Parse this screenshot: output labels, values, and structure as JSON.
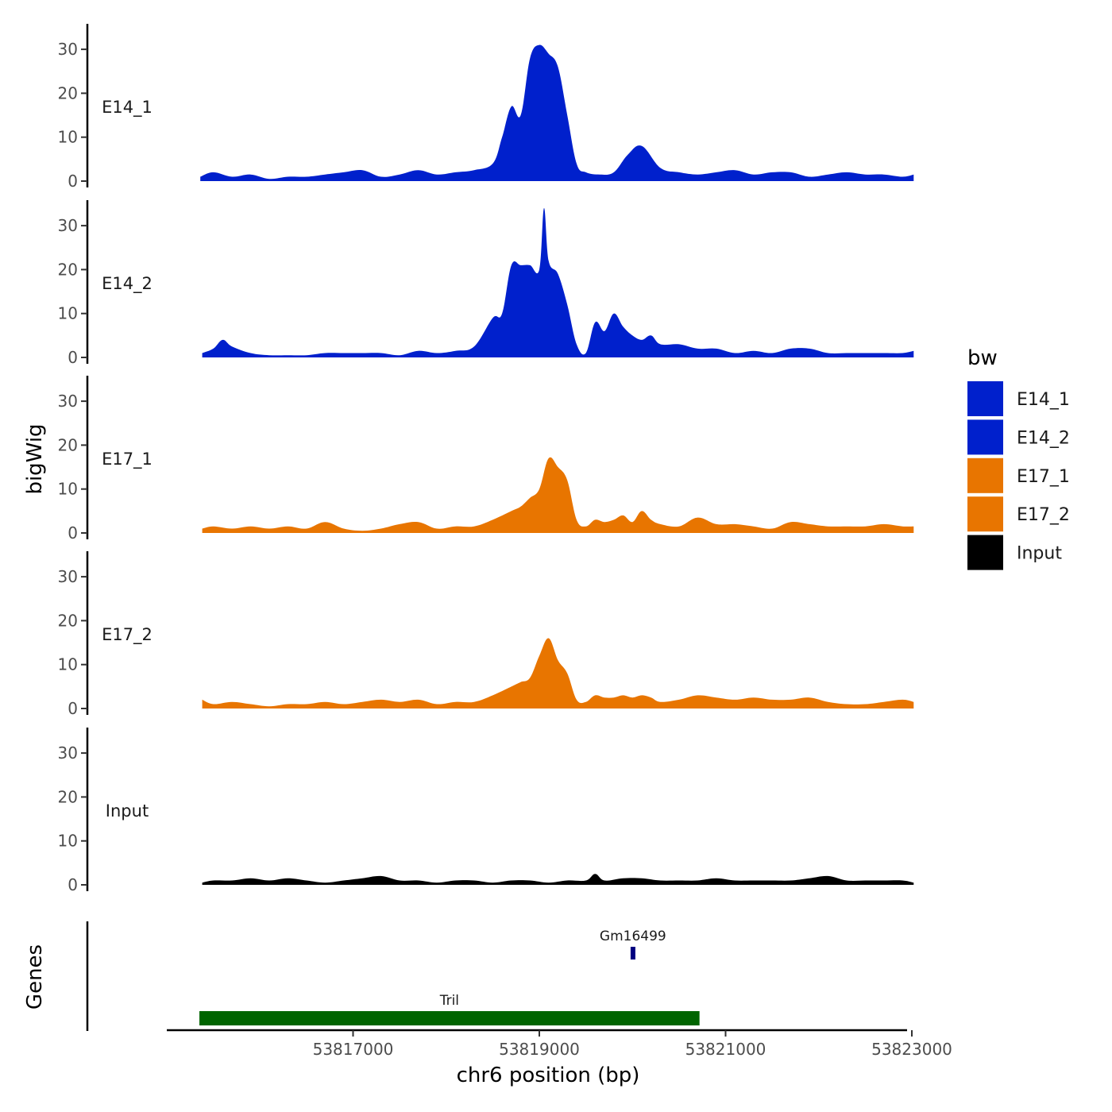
{
  "chart_data": {
    "type": "area",
    "title": "",
    "xlabel": "chr6 position (bp)",
    "ylabel": "bigWig",
    "genes_label": "Genes",
    "xlim": [
      53815000,
      53823000
    ],
    "x_ticks": [
      53817000,
      53819000,
      53821000,
      53823000
    ],
    "x_tick_labels": [
      "53817000",
      "53819000",
      "53821000",
      "53823000"
    ],
    "ylim": [
      0,
      35
    ],
    "y_ticks": [
      0,
      10,
      20,
      30
    ],
    "y_tick_labels": [
      "0",
      "10",
      "20",
      "30"
    ],
    "legend_title": "bw",
    "legend": [
      {
        "label": "E14_1",
        "color": "#0020CC"
      },
      {
        "label": "E14_2",
        "color": "#0020CC"
      },
      {
        "label": "E17_1",
        "color": "#E87500"
      },
      {
        "label": "E17_2",
        "color": "#E87500"
      },
      {
        "label": "Input",
        "color": "#000000"
      }
    ],
    "series": [
      {
        "name": "E14_1",
        "color": "#0020CC",
        "x": [
          53815360,
          53815500,
          53815700,
          53815900,
          53816100,
          53816300,
          53816500,
          53816700,
          53816900,
          53817100,
          53817300,
          53817500,
          53817700,
          53817900,
          53818100,
          53818300,
          53818500,
          53818600,
          53818700,
          53818800,
          53818900,
          53819000,
          53819100,
          53819200,
          53819300,
          53819400,
          53819500,
          53819650,
          53819800,
          53819950,
          53820100,
          53820300,
          53820500,
          53820700,
          53820900,
          53821100,
          53821300,
          53821500,
          53821700,
          53821900,
          53822100,
          53822300,
          53822500,
          53822700,
          53822900,
          53823020
        ],
        "values": [
          1,
          2,
          1,
          1.5,
          0.5,
          1,
          1,
          1.5,
          2,
          2.5,
          1,
          1.5,
          2.5,
          1.5,
          2,
          2.5,
          4,
          10,
          17,
          15,
          28,
          31,
          29,
          26,
          15,
          4,
          2,
          1.5,
          2,
          6,
          8,
          3,
          2,
          1.5,
          2,
          2.5,
          1.5,
          2,
          2,
          1,
          1.5,
          2,
          1.5,
          1.5,
          1,
          1.5
        ]
      },
      {
        "name": "E14_2",
        "color": "#0020CC",
        "x": [
          53815380,
          53815500,
          53815600,
          53815700,
          53815900,
          53816100,
          53816300,
          53816500,
          53816700,
          53816900,
          53817100,
          53817300,
          53817500,
          53817700,
          53817900,
          53818100,
          53818300,
          53818500,
          53818600,
          53818700,
          53818800,
          53818900,
          53819000,
          53819050,
          53819100,
          53819200,
          53819300,
          53819400,
          53819500,
          53819600,
          53819700,
          53819800,
          53819900,
          53820000,
          53820100,
          53820200,
          53820300,
          53820500,
          53820700,
          53820900,
          53821100,
          53821300,
          53821500,
          53821700,
          53821900,
          53822100,
          53822300,
          53822500,
          53822700,
          53822900,
          53823020
        ],
        "values": [
          1,
          2,
          4,
          2.5,
          1,
          0.5,
          0.5,
          0.5,
          1,
          1,
          1,
          1,
          0.5,
          1.5,
          1,
          1.5,
          2.5,
          9,
          10,
          21,
          21,
          21,
          20,
          34,
          22,
          19,
          12,
          3,
          1,
          8,
          6,
          10,
          7,
          5,
          4,
          5,
          3,
          3,
          2,
          2,
          1,
          1.5,
          1,
          2,
          2,
          1,
          1,
          1,
          1,
          1,
          1.5
        ]
      },
      {
        "name": "E17_1",
        "color": "#E87500",
        "x": [
          53815380,
          53815500,
          53815700,
          53815900,
          53816100,
          53816300,
          53816500,
          53816700,
          53816900,
          53817100,
          53817300,
          53817500,
          53817700,
          53817900,
          53818100,
          53818300,
          53818500,
          53818700,
          53818800,
          53818900,
          53819000,
          53819100,
          53819200,
          53819300,
          53819400,
          53819500,
          53819600,
          53819700,
          53819800,
          53819900,
          53820000,
          53820100,
          53820200,
          53820300,
          53820500,
          53820700,
          53820900,
          53821100,
          53821300,
          53821500,
          53821700,
          53821900,
          53822100,
          53822300,
          53822500,
          53822700,
          53822900,
          53823020
        ],
        "values": [
          1,
          1.5,
          1,
          1.5,
          1,
          1.5,
          1,
          2.5,
          1,
          0.5,
          1,
          2,
          2.5,
          1,
          1.5,
          1.5,
          3,
          5,
          6,
          8,
          10,
          17,
          15,
          12,
          3,
          1.5,
          3,
          2.5,
          3,
          4,
          2.5,
          5,
          3,
          2,
          1.5,
          3.5,
          2,
          2,
          1.5,
          1,
          2.5,
          2,
          1.5,
          1.5,
          1.5,
          2,
          1.5,
          1.5
        ]
      },
      {
        "name": "E17_2",
        "color": "#E87500",
        "x": [
          53815380,
          53815500,
          53815700,
          53815900,
          53816100,
          53816300,
          53816500,
          53816700,
          53816900,
          53817100,
          53817300,
          53817500,
          53817700,
          53817900,
          53818100,
          53818300,
          53818500,
          53818700,
          53818800,
          53818900,
          53819000,
          53819100,
          53819200,
          53819300,
          53819400,
          53819500,
          53819600,
          53819700,
          53819800,
          53819900,
          53820000,
          53820100,
          53820200,
          53820300,
          53820500,
          53820700,
          53820900,
          53821100,
          53821300,
          53821500,
          53821700,
          53821900,
          53822100,
          53822300,
          53822500,
          53822700,
          53822900,
          53823020
        ],
        "values": [
          2,
          1,
          1.5,
          1,
          0.5,
          1,
          1,
          1.5,
          1,
          1.5,
          2,
          1.5,
          2,
          1,
          1.5,
          1.5,
          3,
          5,
          6,
          7,
          12,
          16,
          11,
          8,
          2,
          1.5,
          3,
          2.5,
          2.5,
          3,
          2.5,
          3,
          2.5,
          1.5,
          2,
          3,
          2.5,
          2,
          2.5,
          2,
          2,
          2.5,
          1.5,
          1,
          1,
          1.5,
          2,
          1.5
        ]
      },
      {
        "name": "Input",
        "color": "#000000",
        "x": [
          53815380,
          53815500,
          53815700,
          53815900,
          53816100,
          53816300,
          53816500,
          53816700,
          53816900,
          53817100,
          53817300,
          53817500,
          53817700,
          53817900,
          53818100,
          53818300,
          53818500,
          53818700,
          53818900,
          53819100,
          53819300,
          53819500,
          53819600,
          53819700,
          53819900,
          53820100,
          53820300,
          53820500,
          53820700,
          53820900,
          53821100,
          53821300,
          53821500,
          53821700,
          53821900,
          53822100,
          53822300,
          53822500,
          53822700,
          53822900,
          53823020
        ],
        "values": [
          0.5,
          1,
          1,
          1.5,
          1,
          1.5,
          1,
          0.5,
          1,
          1.5,
          2,
          1,
          1,
          0.5,
          1,
          1,
          0.5,
          1,
          1,
          0.5,
          1,
          1,
          2.5,
          1,
          1.5,
          1.5,
          1,
          1,
          1,
          1.5,
          1,
          1,
          1,
          1,
          1.5,
          2,
          1,
          1,
          1,
          1,
          0.5
        ]
      }
    ],
    "genes": [
      {
        "name": "Gm16499",
        "start": 53819980,
        "end": 53820030,
        "color": "#000080",
        "row": "upper"
      },
      {
        "name": "Tril",
        "start": 53815350,
        "end": 53820720,
        "color": "#006400",
        "row": "lower"
      }
    ]
  }
}
